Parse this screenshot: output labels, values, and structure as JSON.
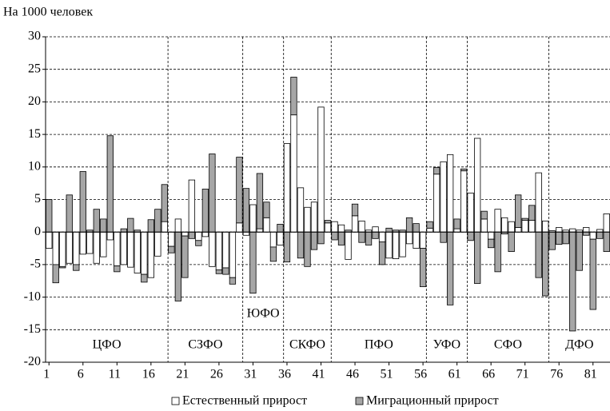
{
  "chart_data": {
    "type": "bar",
    "stacked": true,
    "y_label": "На 1000 человек",
    "categories": [
      1,
      null,
      null,
      null,
      null,
      6,
      null,
      null,
      null,
      null,
      11,
      null,
      null,
      null,
      null,
      16,
      null,
      null,
      null,
      null,
      21,
      null,
      null,
      null,
      null,
      26,
      null,
      null,
      null,
      null,
      31,
      null,
      null,
      null,
      null,
      36,
      null,
      null,
      null,
      null,
      41,
      null,
      null,
      null,
      null,
      46,
      null,
      null,
      null,
      null,
      51,
      null,
      null,
      null,
      null,
      56,
      null,
      null,
      null,
      null,
      61,
      null,
      null,
      null,
      null,
      66,
      null,
      null,
      null,
      null,
      71,
      null,
      null,
      null,
      null,
      76,
      null,
      null,
      null,
      null,
      81,
      null,
      null
    ],
    "series": [
      {
        "name": "Естественный прирост",
        "color": "#ffffff",
        "values": [
          -2.5,
          -5,
          -5.3,
          -4.8,
          -5,
          -3.4,
          -3.3,
          -4.8,
          -3.8,
          -1.2,
          -5.2,
          -5,
          -5.4,
          -6.3,
          -6.5,
          -7,
          -3.7,
          1.6,
          -2.2,
          2,
          -0.6,
          8,
          -1.3,
          -0.7,
          -5.3,
          -5.8,
          -5.5,
          -7,
          1.4,
          -0.5,
          4.2,
          0.5,
          2.2,
          -2.3,
          -2,
          13.6,
          18,
          6.8,
          3.8,
          4.6,
          19.2,
          1.4,
          1.6,
          1.1,
          -4.2,
          2.5,
          1.7,
          0.3,
          0.8,
          -1.5,
          -4,
          -4.1,
          -3.8,
          -1.8,
          -2.5,
          -2.5,
          0.6,
          8.9,
          10.8,
          11.9,
          0.5,
          9.4,
          6,
          14.4,
          2,
          -1.1,
          3.5,
          2.2,
          1.6,
          0.7,
          1.8,
          1.8,
          9.1,
          1.7,
          0.2,
          0.7,
          0.3,
          0.5,
          0.3,
          0.7,
          -1.1,
          0.4,
          2.8
        ]
      },
      {
        "name": "Миграционный прирост",
        "color": "#a6a6a6",
        "values": [
          5,
          -2.8,
          -0.2,
          5.7,
          -0.9,
          9.3,
          0.3,
          3.5,
          2,
          14.8,
          -0.9,
          0.5,
          2.1,
          0.3,
          -1.2,
          1.9,
          3.5,
          5.7,
          -1,
          -10.6,
          -6.4,
          -1,
          -0.8,
          6.6,
          12,
          -0.6,
          -1,
          -1,
          10.1,
          6.7,
          -9.4,
          8.5,
          2.4,
          -2.2,
          1.2,
          -4.6,
          5.8,
          -4,
          -5.3,
          -2.7,
          -1.8,
          0.4,
          -1.2,
          -2,
          0.3,
          1.8,
          -1.6,
          -2,
          -1,
          -3.5,
          0.6,
          0.3,
          0.3,
          2.2,
          1.3,
          -5.9,
          1,
          1,
          -1.6,
          -11.2,
          1.5,
          0.3,
          -1.3,
          -7.9,
          1.2,
          -1.3,
          -6.1,
          -0.3,
          -3,
          5,
          0.3,
          2.3,
          -7,
          -9.8,
          -2.7,
          -1.9,
          -1.8,
          -15.2,
          -5.9,
          -0.5,
          -10.8,
          -1,
          -3
        ]
      }
    ],
    "groups": [
      {
        "label": "ЦФО",
        "count": 18
      },
      {
        "label": "СЗФО",
        "count": 11
      },
      {
        "label": "ЮФО",
        "count": 6
      },
      {
        "label": "СКФО",
        "count": 7
      },
      {
        "label": "ПФО",
        "count": 14
      },
      {
        "label": "УФО",
        "count": 6
      },
      {
        "label": "СФО",
        "count": 12
      },
      {
        "label": "ДФО",
        "count": 9
      }
    ],
    "ylim": [
      -20,
      30
    ],
    "yticks": [
      -20,
      -15,
      -10,
      -5,
      0,
      5,
      10,
      15,
      20,
      25,
      30
    ],
    "grid": true,
    "legend": "bottom"
  }
}
